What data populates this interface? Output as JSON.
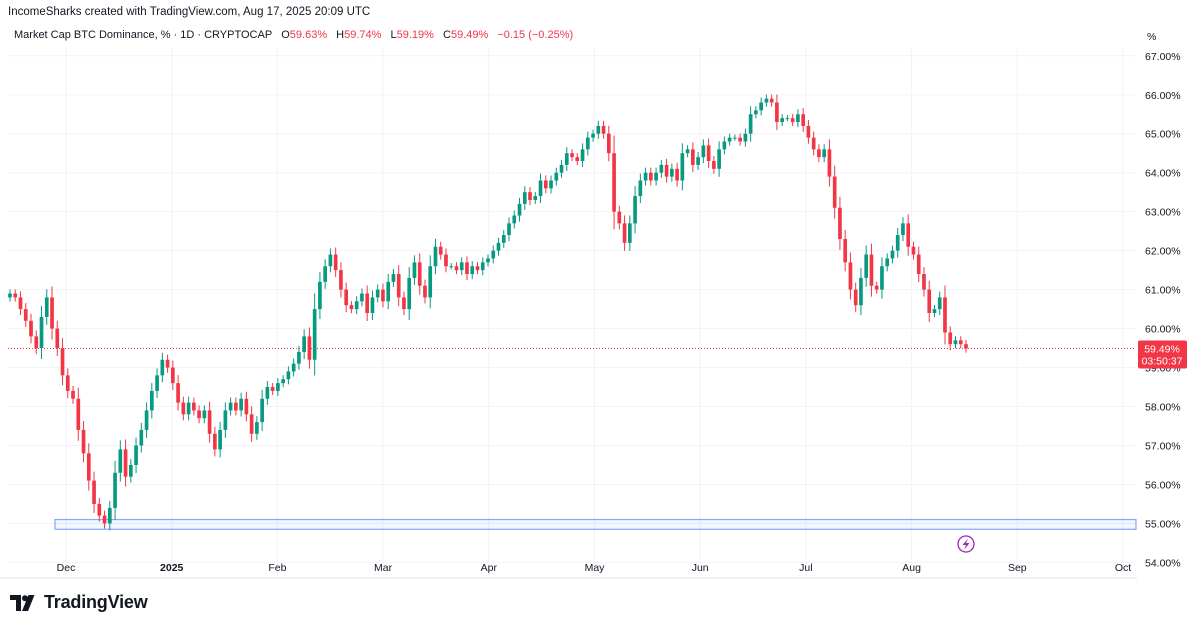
{
  "header": {
    "text": "IncomeSharks created with TradingView.com, Aug 17, 2025 20:09 UTC"
  },
  "legend": {
    "symbol": "Market Cap BTC Dominance, % · 1D · CRYPTOCAP",
    "o_label": "O",
    "o_value": "59.63%",
    "h_label": "H",
    "h_value": "59.74%",
    "l_label": "L",
    "l_value": "59.19%",
    "c_label": "C",
    "c_value": "59.49%",
    "change": "−0.15 (−0.25%)"
  },
  "price_axis": {
    "unit": "%"
  },
  "price_tag": {
    "value": "59.49%",
    "countdown": "03:50:37"
  },
  "footer": {
    "brand": "TradingView"
  },
  "colors": {
    "up": "#089981",
    "down": "#f23645",
    "zone": "#2962ff",
    "grid": "#f0f3fa"
  },
  "chart_data": {
    "type": "candlestick",
    "y_ticks": [
      "54.00%",
      "55.00%",
      "56.00%",
      "57.00%",
      "58.00%",
      "59.00%",
      "60.00%",
      "61.00%",
      "62.00%",
      "63.00%",
      "64.00%",
      "65.00%",
      "66.00%",
      "67.00%"
    ],
    "y_range": [
      53.6,
      67.2
    ],
    "x_labels": [
      "Dec",
      "2025",
      "Feb",
      "Mar",
      "Apr",
      "May",
      "Jun",
      "Jul",
      "Aug",
      "Sep",
      "Oct"
    ],
    "last_price": 59.49,
    "support_zone": [
      54.85,
      55.1
    ],
    "closes": [
      60.9,
      60.8,
      60.5,
      60.2,
      59.8,
      59.5,
      60.3,
      60.8,
      60.0,
      59.5,
      58.8,
      58.4,
      58.2,
      57.4,
      56.8,
      56.1,
      55.5,
      55.2,
      55.0,
      55.4,
      56.3,
      56.9,
      56.2,
      56.5,
      57.0,
      57.4,
      57.9,
      58.4,
      58.8,
      59.2,
      59.0,
      58.6,
      58.1,
      57.8,
      58.1,
      57.9,
      57.7,
      57.9,
      57.3,
      56.9,
      57.4,
      57.9,
      58.1,
      57.9,
      58.2,
      57.8,
      57.3,
      57.6,
      58.2,
      58.5,
      58.4,
      58.6,
      58.7,
      58.9,
      59.1,
      59.4,
      59.8,
      59.2,
      60.5,
      61.2,
      61.6,
      61.9,
      61.5,
      61.0,
      60.6,
      60.5,
      60.7,
      60.9,
      60.4,
      60.8,
      61.0,
      60.7,
      61.2,
      61.4,
      60.8,
      60.5,
      61.3,
      61.7,
      61.1,
      60.8,
      61.6,
      62.1,
      61.9,
      61.6,
      61.6,
      61.5,
      61.7,
      61.4,
      61.6,
      61.5,
      61.7,
      61.8,
      62.0,
      62.2,
      62.4,
      62.7,
      62.9,
      63.2,
      63.5,
      63.3,
      63.4,
      63.8,
      63.6,
      63.8,
      64.0,
      64.2,
      64.5,
      64.4,
      64.3,
      64.6,
      64.9,
      65.0,
      65.2,
      65.0,
      64.5,
      63.0,
      62.7,
      62.2,
      62.7,
      63.4,
      63.8,
      64.0,
      63.8,
      64.0,
      64.2,
      63.9,
      64.1,
      63.8,
      64.5,
      64.6,
      64.2,
      64.4,
      64.7,
      64.3,
      64.1,
      64.6,
      64.8,
      64.9,
      64.9,
      64.8,
      65.0,
      65.5,
      65.6,
      65.8,
      65.9,
      65.8,
      65.3,
      65.4,
      65.4,
      65.3,
      65.5,
      65.2,
      64.9,
      64.6,
      64.4,
      64.6,
      63.9,
      63.1,
      62.3,
      61.7,
      61.0,
      60.6,
      61.3,
      61.9,
      61.1,
      61.0,
      61.6,
      61.8,
      62.0,
      62.4,
      62.7,
      62.1,
      61.9,
      61.4,
      61.0,
      60.4,
      60.5,
      60.8,
      59.9,
      59.6,
      59.7,
      59.6,
      59.49
    ]
  }
}
